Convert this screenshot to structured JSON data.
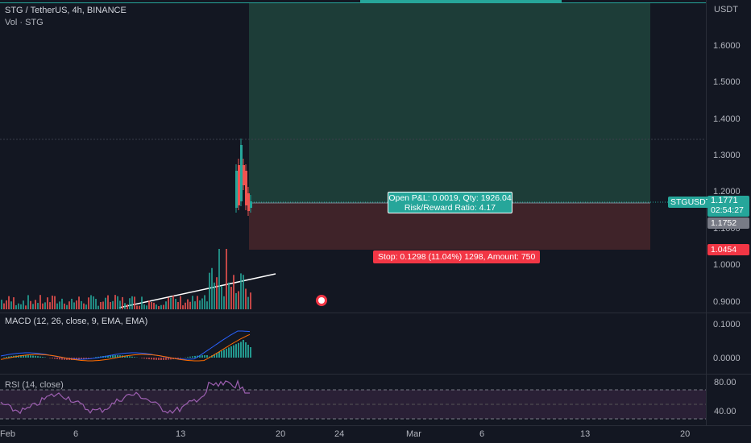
{
  "header": {
    "symbol_line": "STG / TetherUS, 4h, BINANCE",
    "volume_label": "Vol · STG"
  },
  "price_axis": {
    "currency": "USDT",
    "ticks": [
      "1.6000",
      "1.5000",
      "1.4000",
      "1.3000",
      "1.2000",
      "1.1000",
      "1.0000",
      "0.9000"
    ]
  },
  "price_tags": {
    "symbol": "STGUSDT",
    "last_price": "1.1771",
    "countdown": "02:54:27",
    "grey_price": "1.1752",
    "stop_price": "1.0454"
  },
  "position_tool": {
    "open_pnl": "Open P&L: 0.0019, Qty: 1926.04",
    "risk_reward": "Risk/Reward Ratio: 4.17",
    "stop_label": "Stop: 0.1298 (11.04%) 1298, Amount: 750"
  },
  "macd": {
    "label": "MACD (12, 26, close, 9, EMA, EMA)",
    "ticks": [
      "0.1000",
      "0.0000"
    ]
  },
  "rsi": {
    "label": "RSI (14, close)",
    "ticks": [
      "80.00",
      "40.00"
    ]
  },
  "time_axis": {
    "ticks": [
      "Feb",
      "6",
      "13",
      "20",
      "24",
      "Mar",
      "6",
      "13",
      "20"
    ]
  },
  "colors": {
    "background": "#131722",
    "up": "#26a69a",
    "down": "#ef5350",
    "profit_zone": "#1c3b37",
    "loss_zone": "#3d2328",
    "rsi_line": "#9c5fb0",
    "macd_line": "#2962ff",
    "signal_line": "#ff6d00"
  }
}
